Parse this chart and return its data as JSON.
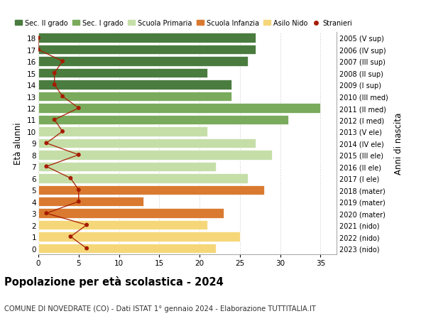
{
  "ages": [
    18,
    17,
    16,
    15,
    14,
    13,
    12,
    11,
    10,
    9,
    8,
    7,
    6,
    5,
    4,
    3,
    2,
    1,
    0
  ],
  "years": [
    "2005 (V sup)",
    "2006 (IV sup)",
    "2007 (III sup)",
    "2008 (II sup)",
    "2009 (I sup)",
    "2010 (III med)",
    "2011 (II med)",
    "2012 (I med)",
    "2013 (V ele)",
    "2014 (IV ele)",
    "2015 (III ele)",
    "2016 (II ele)",
    "2017 (I ele)",
    "2018 (mater)",
    "2019 (mater)",
    "2020 (mater)",
    "2021 (nido)",
    "2022 (nido)",
    "2023 (nido)"
  ],
  "bar_values": [
    27,
    27,
    26,
    21,
    24,
    24,
    35,
    31,
    21,
    27,
    29,
    22,
    26,
    28,
    13,
    23,
    21,
    25,
    22
  ],
  "bar_colors": [
    "#4a7c3f",
    "#4a7c3f",
    "#4a7c3f",
    "#4a7c3f",
    "#4a7c3f",
    "#7aab5c",
    "#7aab5c",
    "#7aab5c",
    "#c5dea8",
    "#c5dea8",
    "#c5dea8",
    "#c5dea8",
    "#c5dea8",
    "#d97a30",
    "#d97a30",
    "#d97a30",
    "#f5d77a",
    "#f5d77a",
    "#f5d77a"
  ],
  "stranieri_values": [
    0,
    0,
    3,
    2,
    2,
    3,
    5,
    2,
    3,
    1,
    5,
    1,
    4,
    5,
    5,
    1,
    6,
    4,
    6
  ],
  "legend_labels": [
    "Sec. II grado",
    "Sec. I grado",
    "Scuola Primaria",
    "Scuola Infanzia",
    "Asilo Nido",
    "Stranieri"
  ],
  "legend_colors": [
    "#4a7c3f",
    "#7aab5c",
    "#c5dea8",
    "#d97a30",
    "#f5d77a",
    "#a61c00"
  ],
  "ylabel_left": "Età alunni",
  "ylabel_right": "Anni di nascita",
  "title": "Popolazione per età scolastica - 2024",
  "subtitle": "COMUNE DI NOVEDRATE (CO) - Dati ISTAT 1° gennaio 2024 - Elaborazione TUTTITALIA.IT",
  "xlim": [
    0,
    37
  ],
  "ylim_min": -0.5,
  "ylim_max": 18.5,
  "background_color": "#ffffff",
  "stranieri_color": "#a61c00",
  "grid_color": "#cccccc",
  "xticks": [
    0,
    5,
    10,
    15,
    20,
    25,
    30,
    35
  ]
}
